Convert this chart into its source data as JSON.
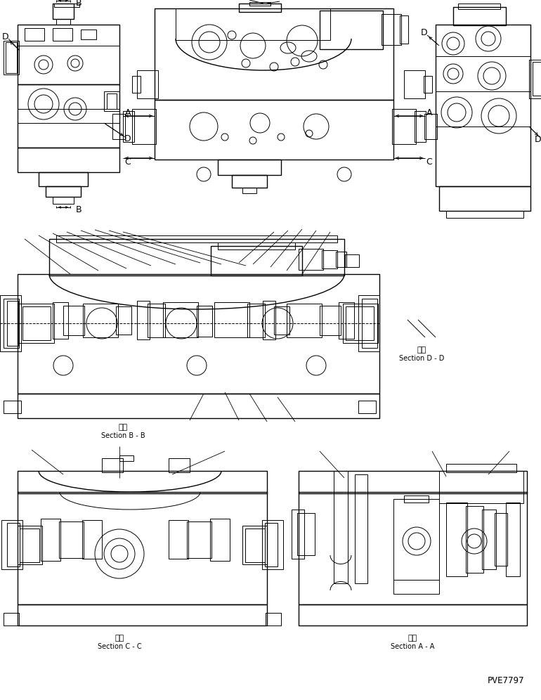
{
  "bg_color": "#ffffff",
  "line_color": "#000000",
  "fig_width": 7.7,
  "fig_height": 9.96,
  "dpi": 100,
  "sections": {
    "bb_kanji": "断面",
    "bb_text": "Section B - B",
    "dd_kanji": "断面",
    "dd_text": "Section D - D",
    "cc_kanji": "断面",
    "cc_text": "Section C - C",
    "aa_kanji": "断面",
    "aa_text": "Section A - A"
  },
  "pve": "PVE7797"
}
